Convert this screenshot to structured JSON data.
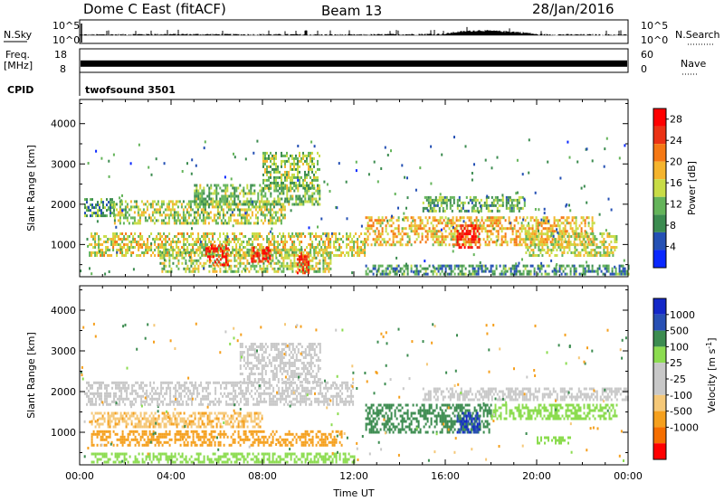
{
  "header": {
    "radar": "Dome C East (fitACF)",
    "beam": "Beam 13",
    "date": "28/Jan/2016"
  },
  "panel_labels": {
    "nsky": "N.Sky",
    "nsearch": "N.Search",
    "freq_line1": "Freq.",
    "freq_line2": "[MHz]",
    "nave": "Nave",
    "cpid": "CPID",
    "cpid_value": "twofsound 3501"
  },
  "noise_ticks": {
    "left_top": "10^5",
    "left_bottom": "10^0",
    "right_top": "10^5",
    "right_bottom": "10^0"
  },
  "freq_ticks": {
    "left_top": "18",
    "left_bottom": "8",
    "right_top": "60",
    "right_bottom": "0"
  },
  "colors": {
    "power_scale": [
      "#0a28ff",
      "#2450b4",
      "#3c8c50",
      "#64b45a",
      "#c8dc46",
      "#f5b42d",
      "#f57814",
      "#eb3214",
      "#ff0000"
    ],
    "velocity_scale": [
      "#ff0000",
      "#f56e00",
      "#f5a01e",
      "#f5c878",
      "#c8c8c8",
      "#c8c8c8",
      "#8cdc50",
      "#3c8c50",
      "#2850b4",
      "#1428c8"
    ],
    "ground_scatter": "#c8c8c8"
  },
  "chart_data": [
    {
      "type": "line",
      "panel": "noise",
      "series": [
        {
          "name": "N.Sky",
          "x": [
            "00:00",
            "04:00",
            "08:00",
            "12:00",
            "16:00",
            "17:30",
            "20:00",
            "24:00"
          ],
          "values": [
            60,
            80,
            70,
            60,
            90,
            600,
            70,
            60
          ]
        }
      ],
      "ylim_text": [
        "10^0",
        "10^5"
      ],
      "log_scale": true
    },
    {
      "type": "line",
      "panel": "frequency",
      "series": [
        {
          "name": "Freq.",
          "x": [
            "00:00",
            "24:00"
          ],
          "values": [
            11,
            11
          ]
        }
      ],
      "ylim": [
        8,
        18
      ],
      "right_ylim": [
        0,
        60
      ]
    },
    {
      "type": "heatmap",
      "panel": "power",
      "xlabel": "",
      "ylabel": "Slant Range [km]",
      "x_ticks": [
        "00:00",
        "04:00",
        "08:00",
        "12:00",
        "16:00",
        "20:00",
        "00:00"
      ],
      "x_range_hours": [
        0,
        24
      ],
      "y_ticks": [
        1000,
        2000,
        3000,
        4000
      ],
      "ylim": [
        200,
        4600
      ],
      "colorbar": {
        "label": "Power [dB]",
        "ticks": [
          4,
          8,
          12,
          16,
          20,
          24,
          28
        ],
        "range": [
          0,
          30
        ]
      },
      "bands": [
        {
          "t0": 0.2,
          "t1": 1.5,
          "r0": 1700,
          "r1": 2150,
          "value": 10
        },
        {
          "t0": 1.5,
          "t1": 9.0,
          "r0": 1500,
          "r1": 2100,
          "value": 14
        },
        {
          "t0": 5.0,
          "t1": 10.5,
          "r0": 2000,
          "r1": 2500,
          "value": 12
        },
        {
          "t0": 8.0,
          "t1": 10.5,
          "r0": 2400,
          "r1": 3300,
          "value": 13
        },
        {
          "t0": 0.4,
          "t1": 12.5,
          "r0": 700,
          "r1": 1300,
          "value": 16
        },
        {
          "t0": 3.5,
          "t1": 11.0,
          "r0": 300,
          "r1": 900,
          "value": 14
        },
        {
          "t0": 5.5,
          "t1": 6.5,
          "r0": 500,
          "r1": 1000,
          "value": 26
        },
        {
          "t0": 7.5,
          "t1": 8.3,
          "r0": 550,
          "r1": 950,
          "value": 27
        },
        {
          "t0": 9.5,
          "t1": 10.0,
          "r0": 300,
          "r1": 800,
          "value": 26
        },
        {
          "t0": 12.5,
          "t1": 22.5,
          "r0": 1000,
          "r1": 1700,
          "value": 18
        },
        {
          "t0": 16.5,
          "t1": 17.5,
          "r0": 900,
          "r1": 1500,
          "value": 27
        },
        {
          "t0": 15.0,
          "t1": 19.5,
          "r0": 1800,
          "r1": 2200,
          "value": 11
        },
        {
          "t0": 19.5,
          "t1": 23.5,
          "r0": 700,
          "r1": 1300,
          "value": 15
        },
        {
          "t0": 12.5,
          "t1": 24.0,
          "r0": 250,
          "r1": 500,
          "value": 9
        }
      ]
    },
    {
      "type": "heatmap",
      "panel": "velocity",
      "xlabel": "Time UT",
      "ylabel": "Slant Range [km]",
      "x_ticks": [
        "00:00",
        "04:00",
        "08:00",
        "12:00",
        "16:00",
        "20:00",
        "00:00"
      ],
      "x_range_hours": [
        0,
        24
      ],
      "y_ticks": [
        1000,
        2000,
        3000,
        4000
      ],
      "ylim": [
        200,
        4600
      ],
      "colorbar": {
        "label": "Velocity [m s^-1]",
        "ticks": [
          1000,
          500,
          100,
          25,
          -25,
          -100,
          -500,
          -1000
        ]
      },
      "bands": [
        {
          "t0": 0.2,
          "t1": 12.0,
          "r0": 1650,
          "r1": 2250,
          "value": 0,
          "ground": true
        },
        {
          "t0": 7.0,
          "t1": 10.5,
          "r0": 2200,
          "r1": 3200,
          "value": 0,
          "ground": true
        },
        {
          "t0": 0.5,
          "t1": 11.5,
          "r0": 650,
          "r1": 1050,
          "value": -300
        },
        {
          "t0": 0.5,
          "t1": 8.0,
          "r0": 1100,
          "r1": 1500,
          "value": -80
        },
        {
          "t0": 12.5,
          "t1": 18.0,
          "r0": 1000,
          "r1": 1700,
          "value": 300
        },
        {
          "t0": 16.5,
          "t1": 17.5,
          "r0": 1000,
          "r1": 1500,
          "value": 900
        },
        {
          "t0": 18.0,
          "t1": 23.5,
          "r0": 1300,
          "r1": 1700,
          "value": 50
        },
        {
          "t0": 20.0,
          "t1": 21.5,
          "r0": 700,
          "r1": 900,
          "value": 70
        },
        {
          "t0": 15.0,
          "t1": 24.0,
          "r0": 1800,
          "r1": 2100,
          "value": 0,
          "ground": true
        },
        {
          "t0": 0.5,
          "t1": 12.0,
          "r0": 250,
          "r1": 500,
          "value": 60
        }
      ]
    }
  ]
}
